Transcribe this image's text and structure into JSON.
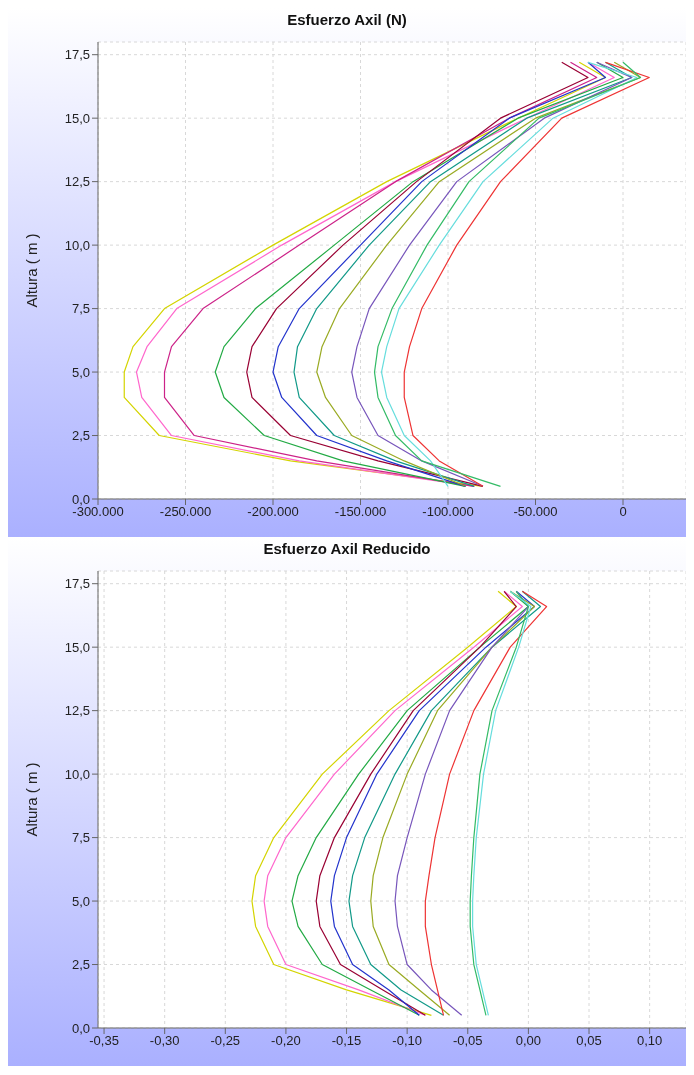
{
  "chart_data": [
    {
      "type": "line",
      "title": "Esfuerzo Axil (N)",
      "ylabel": "Altura ( m )",
      "grid": true,
      "marker": "none",
      "line_style": "solid",
      "xlim": [
        -300000,
        36000
      ],
      "xticks": [
        {
          "value": -300000,
          "label": "-300.000"
        },
        {
          "value": -250000,
          "label": "-250.000"
        },
        {
          "value": -200000,
          "label": "-200.000"
        },
        {
          "value": -150000,
          "label": "-150.000"
        },
        {
          "value": -100000,
          "label": "-100.000"
        },
        {
          "value": -50000,
          "label": "-50.000"
        },
        0
      ],
      "ylim": [
        0,
        18
      ],
      "yticks": [
        {
          "value": 0,
          "label": "0,0"
        },
        {
          "value": 2.5,
          "label": "2,5"
        },
        {
          "value": 5,
          "label": "5,0"
        },
        {
          "value": 7.5,
          "label": "7,5"
        },
        {
          "value": 10,
          "label": "10,0"
        },
        {
          "value": 12.5,
          "label": "12,5"
        },
        {
          "value": 15,
          "label": "15,0"
        },
        {
          "value": 17.5,
          "label": "17,5"
        }
      ],
      "series": [
        {
          "color": "#d4d400",
          "x": [
            -80000,
            -190000,
            -265000,
            -285000,
            -285000,
            -280000,
            -262000,
            -200000,
            -135000,
            -60000,
            -10000,
            -25000
          ],
          "values": [
            0.5,
            1.5,
            2.5,
            4,
            5,
            6,
            7.5,
            10,
            12.5,
            15,
            16.6,
            17.2
          ]
        },
        {
          "color": "#ff66cc",
          "x": [
            -85000,
            -185000,
            -258000,
            -275000,
            -278000,
            -272000,
            -255000,
            -195000,
            -130000,
            -55000,
            -5000,
            -20000
          ],
          "values": [
            0.5,
            1.5,
            2.5,
            4,
            5,
            6,
            7.5,
            10,
            12.5,
            15,
            16.6,
            17.2
          ]
        },
        {
          "color": "#cc2288",
          "x": [
            -85000,
            -175000,
            -245000,
            -262000,
            -262000,
            -258000,
            -240000,
            -185000,
            -130000,
            -65000,
            -15000,
            -30000
          ],
          "values": [
            0.5,
            1.5,
            2.5,
            4,
            5,
            6,
            7.5,
            10,
            12.5,
            15,
            16.6,
            17.2
          ]
        },
        {
          "color": "#22aa44",
          "x": [
            -90000,
            -160000,
            -205000,
            -228000,
            -233000,
            -228000,
            -210000,
            -165000,
            -120000,
            -60000,
            0,
            -15000
          ],
          "values": [
            0.5,
            1.5,
            2.5,
            4,
            5,
            6,
            7.5,
            10,
            12.5,
            15,
            16.6,
            17.2
          ]
        },
        {
          "color": "#990033",
          "x": [
            -80000,
            -140000,
            -190000,
            -212000,
            -215000,
            -212000,
            -198000,
            -160000,
            -118000,
            -70000,
            -20000,
            -35000
          ],
          "values": [
            0.5,
            1.5,
            2.5,
            4,
            5,
            6,
            7.5,
            10,
            12.5,
            15,
            16.6,
            17.2
          ]
        },
        {
          "color": "#2233cc",
          "x": [
            -90000,
            -135000,
            -175000,
            -195000,
            -200000,
            -197000,
            -185000,
            -150000,
            -115000,
            -65000,
            -10000,
            -20000
          ],
          "values": [
            0.5,
            1.5,
            2.5,
            4,
            5,
            6,
            7.5,
            10,
            12.5,
            15,
            16.6,
            17.2
          ]
        },
        {
          "color": "#119988",
          "x": [
            -85000,
            -130000,
            -165000,
            -185000,
            -188000,
            -186000,
            -175000,
            -145000,
            -110000,
            -55000,
            5000,
            -10000
          ],
          "values": [
            0.5,
            1.5,
            2.5,
            4,
            5,
            6,
            7.5,
            10,
            12.5,
            15,
            16.6,
            17.2
          ]
        },
        {
          "color": "#99aa22",
          "x": [
            -90000,
            -125000,
            -155000,
            -170000,
            -175000,
            -172000,
            -162000,
            -135000,
            -105000,
            -50000,
            10000,
            -5000
          ],
          "values": [
            0.5,
            1.5,
            2.5,
            4,
            5,
            6,
            7.5,
            10,
            12.5,
            15,
            16.6,
            17.2
          ]
        },
        {
          "color": "#7755bb",
          "x": [
            -80000,
            -115000,
            -140000,
            -152000,
            -155000,
            -152000,
            -145000,
            -122000,
            -95000,
            -45000,
            5000,
            -15000
          ],
          "values": [
            0.5,
            1.5,
            2.5,
            4,
            5,
            6,
            7.5,
            10,
            12.5,
            15,
            16.6,
            17.2
          ]
        },
        {
          "color": "#ee3333",
          "x": [
            -80000,
            -105000,
            -120000,
            -125000,
            -125000,
            -122000,
            -115000,
            -95000,
            -70000,
            -35000,
            15000,
            -10000
          ],
          "values": [
            0.5,
            1.5,
            2.5,
            4,
            5,
            6,
            7.5,
            10,
            12.5,
            15,
            16.6,
            17.2
          ]
        },
        {
          "color": "#66dddd",
          "x": [
            -100000,
            -110000,
            -125000,
            -135000,
            -138000,
            -135000,
            -128000,
            -105000,
            -80000,
            -40000,
            8000,
            -20000
          ],
          "values": [
            0.5,
            1.5,
            2.5,
            4,
            5,
            6,
            7.5,
            10,
            12.5,
            15,
            16.6,
            17.2
          ]
        },
        {
          "color": "#33bb66",
          "x": [
            -70000,
            -115000,
            -130000,
            -140000,
            -142000,
            -140000,
            -132000,
            -112000,
            -88000,
            -48000,
            10000,
            0
          ],
          "values": [
            0.5,
            1.5,
            2.5,
            4,
            5,
            6,
            7.5,
            10,
            12.5,
            15,
            16.6,
            17.2
          ]
        }
      ]
    },
    {
      "type": "line",
      "title": "Esfuerzo Axil Reducido",
      "ylabel": "Altura ( m )",
      "grid": true,
      "marker": "none",
      "line_style": "solid",
      "xlim": [
        -0.355,
        0.13
      ],
      "xticks": [
        {
          "value": -0.35,
          "label": "-0,35"
        },
        {
          "value": -0.3,
          "label": "-0,30"
        },
        {
          "value": -0.25,
          "label": "-0,25"
        },
        {
          "value": -0.2,
          "label": "-0,20"
        },
        {
          "value": -0.15,
          "label": "-0,15"
        },
        {
          "value": -0.1,
          "label": "-0,10"
        },
        {
          "value": -0.05,
          "label": "-0,05"
        },
        {
          "value": 0,
          "label": "0,00"
        },
        {
          "value": 0.05,
          "label": "0,05"
        },
        {
          "value": 0.1,
          "label": "0,10"
        }
      ],
      "ylim": [
        0,
        18
      ],
      "yticks": [
        {
          "value": 0,
          "label": "0,0"
        },
        {
          "value": 2.5,
          "label": "2,5"
        },
        {
          "value": 5,
          "label": "5,0"
        },
        {
          "value": 7.5,
          "label": "7,5"
        },
        {
          "value": 10,
          "label": "10,0"
        },
        {
          "value": 12.5,
          "label": "12,5"
        },
        {
          "value": 15,
          "label": "15,0"
        },
        {
          "value": 17.5,
          "label": "17,5"
        }
      ],
      "series": [
        {
          "color": "#d4d400",
          "x": [
            -0.08,
            -0.15,
            -0.21,
            -0.225,
            -0.228,
            -0.225,
            -0.21,
            -0.17,
            -0.115,
            -0.05,
            -0.01,
            -0.025
          ],
          "values": [
            0.5,
            1.5,
            2.5,
            4,
            5,
            6,
            7.5,
            10,
            12.5,
            15,
            16.6,
            17.2
          ]
        },
        {
          "color": "#ff66cc",
          "x": [
            -0.085,
            -0.14,
            -0.2,
            -0.215,
            -0.218,
            -0.215,
            -0.2,
            -0.16,
            -0.11,
            -0.045,
            -0.005,
            -0.02
          ],
          "values": [
            0.5,
            1.5,
            2.5,
            4,
            5,
            6,
            7.5,
            10,
            12.5,
            15,
            16.6,
            17.2
          ]
        },
        {
          "color": "#22aa44",
          "x": [
            -0.09,
            -0.13,
            -0.17,
            -0.19,
            -0.195,
            -0.19,
            -0.175,
            -0.14,
            -0.1,
            -0.04,
            0,
            -0.015
          ],
          "values": [
            0.5,
            1.5,
            2.5,
            4,
            5,
            6,
            7.5,
            10,
            12.5,
            15,
            16.6,
            17.2
          ]
        },
        {
          "color": "#990033",
          "x": [
            -0.085,
            -0.12,
            -0.155,
            -0.172,
            -0.175,
            -0.172,
            -0.16,
            -0.13,
            -0.095,
            -0.04,
            -0.01,
            -0.02
          ],
          "values": [
            0.5,
            1.5,
            2.5,
            4,
            5,
            6,
            7.5,
            10,
            12.5,
            15,
            16.6,
            17.2
          ]
        },
        {
          "color": "#2233cc",
          "x": [
            -0.09,
            -0.115,
            -0.145,
            -0.16,
            -0.163,
            -0.16,
            -0.15,
            -0.125,
            -0.09,
            -0.035,
            0.005,
            -0.01
          ],
          "values": [
            0.5,
            1.5,
            2.5,
            4,
            5,
            6,
            7.5,
            10,
            12.5,
            15,
            16.6,
            17.2
          ]
        },
        {
          "color": "#119988",
          "x": [
            -0.07,
            -0.105,
            -0.13,
            -0.145,
            -0.148,
            -0.145,
            -0.135,
            -0.11,
            -0.08,
            -0.03,
            0.01,
            -0.005
          ],
          "values": [
            0.5,
            1.5,
            2.5,
            4,
            5,
            6,
            7.5,
            10,
            12.5,
            15,
            16.6,
            17.2
          ]
        },
        {
          "color": "#99aa22",
          "x": [
            -0.065,
            -0.09,
            -0.115,
            -0.128,
            -0.13,
            -0.128,
            -0.12,
            -0.1,
            -0.075,
            -0.03,
            0.005,
            -0.015
          ],
          "values": [
            0.5,
            1.5,
            2.5,
            4,
            5,
            6,
            7.5,
            10,
            12.5,
            15,
            16.6,
            17.2
          ]
        },
        {
          "color": "#7755bb",
          "x": [
            -0.055,
            -0.08,
            -0.1,
            -0.108,
            -0.11,
            -0.108,
            -0.1,
            -0.085,
            -0.065,
            -0.03,
            0,
            -0.01
          ],
          "values": [
            0.5,
            1.5,
            2.5,
            4,
            5,
            6,
            7.5,
            10,
            12.5,
            15,
            16.6,
            17.2
          ]
        },
        {
          "color": "#ee3333",
          "x": [
            -0.07,
            -0.075,
            -0.08,
            -0.085,
            -0.085,
            -0.082,
            -0.077,
            -0.065,
            -0.045,
            -0.015,
            0.015,
            -0.005
          ],
          "values": [
            0.5,
            1.5,
            2.5,
            4,
            5,
            6,
            7.5,
            10,
            12.5,
            15,
            16.6,
            17.2
          ]
        },
        {
          "color": "#33bb66",
          "x": [
            -0.035,
            -0.04,
            -0.045,
            -0.048,
            -0.048,
            -0.047,
            -0.045,
            -0.04,
            -0.03,
            -0.01,
            0,
            -0.01
          ],
          "values": [
            0.5,
            1.5,
            2.5,
            4,
            5,
            6,
            7.5,
            10,
            12.5,
            15,
            16.6,
            17.2
          ]
        },
        {
          "color": "#66dddd",
          "x": [
            -0.033,
            -0.038,
            -0.043,
            -0.046,
            -0.046,
            -0.045,
            -0.043,
            -0.037,
            -0.027,
            -0.008,
            0.002,
            -0.015
          ],
          "values": [
            0.5,
            1.5,
            2.5,
            4,
            5,
            6,
            7.5,
            10,
            12.5,
            15,
            16.6,
            17.2
          ]
        }
      ]
    }
  ]
}
